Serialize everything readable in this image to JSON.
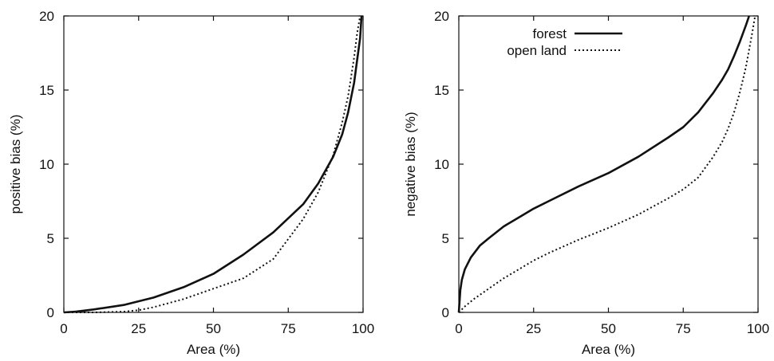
{
  "chart_data": [
    {
      "type": "line",
      "xlabel": "Area (%)",
      "ylabel": "positive bias (%)",
      "xlim": [
        0,
        100
      ],
      "ylim": [
        0,
        20
      ],
      "xticks": [
        "0",
        "25",
        "50",
        "75",
        "100"
      ],
      "yticks": [
        "0",
        "5",
        "10",
        "15",
        "20"
      ],
      "grid": false,
      "legend": null,
      "series": [
        {
          "name": "forest",
          "style": "solid",
          "x": [
            0,
            4,
            10,
            20,
            30,
            40,
            50,
            60,
            70,
            80,
            85,
            90,
            93,
            95,
            97,
            98,
            99,
            99.5
          ],
          "y": [
            0,
            0.05,
            0.2,
            0.5,
            1.0,
            1.7,
            2.6,
            3.9,
            5.4,
            7.3,
            8.7,
            10.5,
            12.0,
            13.5,
            15.5,
            17.0,
            18.5,
            20.0
          ]
        },
        {
          "name": "open land",
          "style": "dotted",
          "x": [
            0,
            10,
            20,
            25,
            30,
            40,
            50,
            60,
            70,
            80,
            85,
            90,
            93,
            95,
            97,
            98,
            99
          ],
          "y": [
            0,
            0,
            0.05,
            0.15,
            0.35,
            0.9,
            1.6,
            2.3,
            3.6,
            6.3,
            8.1,
            10.6,
            12.8,
            14.6,
            17.2,
            18.8,
            20.0
          ]
        }
      ]
    },
    {
      "type": "line",
      "xlabel": "Area (%)",
      "ylabel": "negative bias (%)",
      "xlim": [
        0,
        100
      ],
      "ylim": [
        0,
        20
      ],
      "xticks": [
        "0",
        "25",
        "50",
        "75",
        "100"
      ],
      "yticks": [
        "0",
        "5",
        "10",
        "15",
        "20"
      ],
      "grid": false,
      "legend": "top-left",
      "series": [
        {
          "name": "forest",
          "style": "solid",
          "x": [
            0,
            0.5,
            1,
            2,
            4,
            7,
            10,
            15,
            20,
            25,
            30,
            40,
            50,
            60,
            70,
            75,
            80,
            85,
            88,
            90,
            92,
            94,
            96,
            97
          ],
          "y": [
            0,
            1.5,
            2.2,
            2.9,
            3.7,
            4.5,
            5.0,
            5.8,
            6.4,
            7.0,
            7.5,
            8.5,
            9.4,
            10.5,
            11.8,
            12.5,
            13.5,
            14.8,
            15.7,
            16.4,
            17.3,
            18.3,
            19.4,
            20.0
          ]
        },
        {
          "name": "open land",
          "style": "dotted",
          "x": [
            0,
            2,
            5,
            10,
            15,
            20,
            25,
            30,
            40,
            50,
            60,
            70,
            75,
            80,
            85,
            88,
            90,
            92,
            94,
            96,
            98,
            99
          ],
          "y": [
            0,
            0.4,
            0.9,
            1.6,
            2.3,
            2.9,
            3.5,
            4.0,
            4.9,
            5.7,
            6.6,
            7.7,
            8.3,
            9.1,
            10.5,
            11.5,
            12.4,
            13.5,
            14.9,
            16.6,
            18.8,
            20.0
          ]
        }
      ]
    }
  ]
}
